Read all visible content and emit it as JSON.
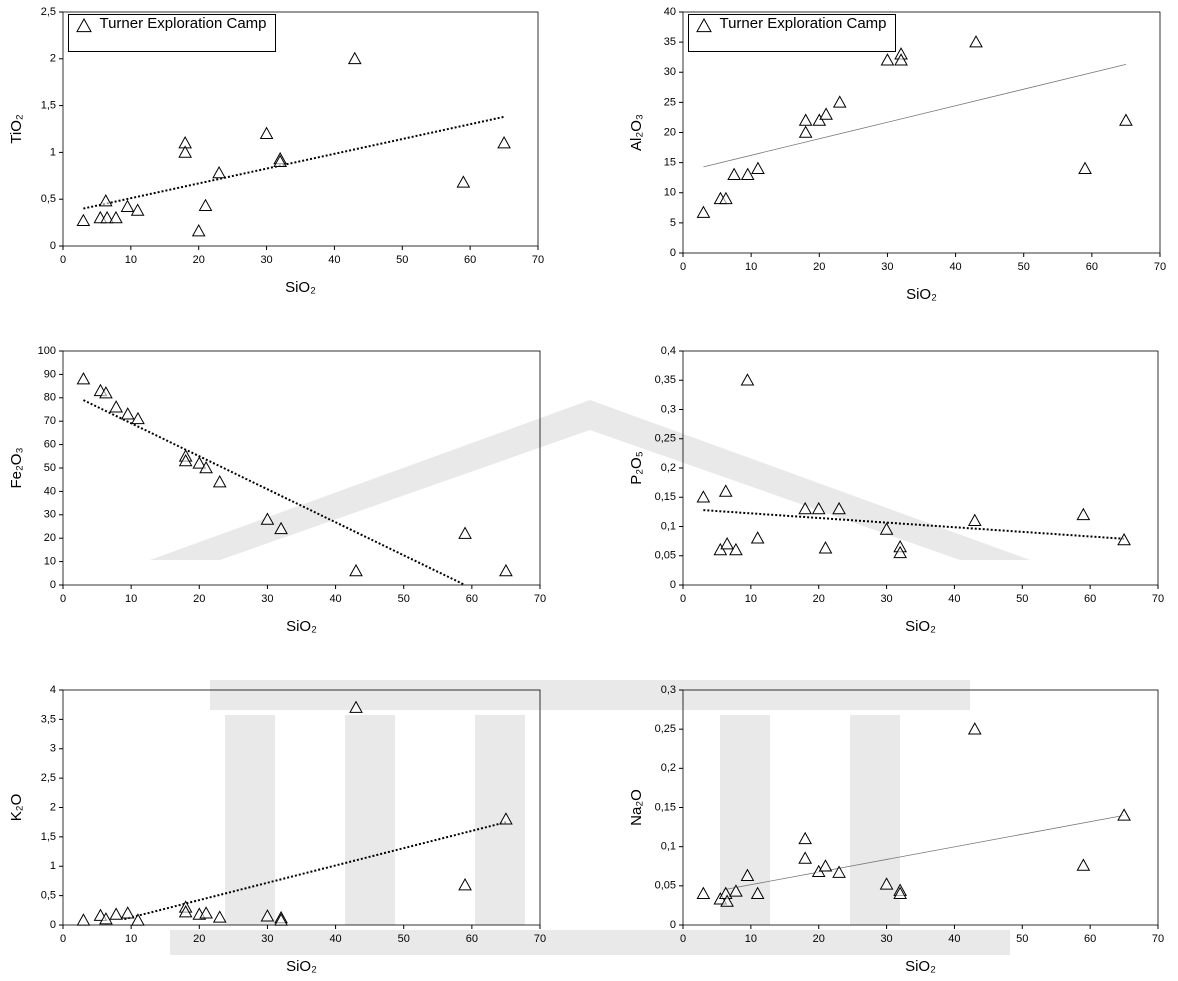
{
  "chart_data": [
    {
      "type": "scatter",
      "xlabel": "SiO₂",
      "ylabel": "TiO₂",
      "name": "Turner Exploration Camp",
      "legend": "upper left",
      "color": "#000000",
      "x": [
        3,
        5.5,
        6.3,
        6.5,
        7.8,
        9.5,
        11,
        18,
        18,
        20,
        21,
        23,
        30,
        32,
        32,
        43,
        59,
        65
      ],
      "y": [
        0.27,
        0.3,
        0.48,
        0.3,
        0.3,
        0.42,
        0.38,
        1.1,
        1.0,
        0.16,
        0.43,
        0.78,
        1.2,
        0.93,
        0.9,
        2.0,
        0.68,
        1.1
      ],
      "trend": {
        "x": [
          3,
          65
        ],
        "y": [
          0.4,
          1.38
        ],
        "style": "dotted"
      },
      "xlim": [
        0,
        70
      ],
      "xticks": [
        0,
        10,
        20,
        30,
        40,
        50,
        60,
        70
      ],
      "ylim": [
        0,
        2.5
      ],
      "yticks": [
        0,
        {
          "value": 0.5,
          "label": "0,5"
        },
        1,
        {
          "value": 1.5,
          "label": "1,5"
        },
        2,
        {
          "value": 2.5,
          "label": "2,5"
        }
      ]
    },
    {
      "type": "scatter",
      "xlabel": "SiO₂",
      "ylabel": "Al₂O₃",
      "name": "Turner Exploration Camp",
      "legend": "upper left",
      "color": "#000000",
      "x": [
        3,
        5.5,
        6.3,
        7.5,
        9.5,
        11,
        18,
        18,
        20,
        21,
        23,
        30,
        32,
        32,
        43,
        59,
        65
      ],
      "y": [
        6.7,
        9,
        9,
        13,
        13,
        14,
        22,
        20,
        22,
        23,
        25,
        32,
        33,
        32,
        35,
        14,
        22
      ],
      "trend": {
        "x": [
          3,
          65
        ],
        "y": [
          14.3,
          31.3
        ],
        "style": "thin"
      },
      "xlim": [
        0,
        70
      ],
      "xticks": [
        0,
        10,
        20,
        30,
        40,
        50,
        60,
        70
      ],
      "ylim": [
        0,
        40
      ],
      "yticks": [
        0,
        5,
        10,
        15,
        20,
        25,
        30,
        35,
        40
      ]
    },
    {
      "type": "scatter",
      "xlabel": "SiO₂",
      "ylabel": "Fe₂O₃",
      "color": "#000000",
      "x": [
        3,
        5.5,
        6.3,
        7.8,
        9.5,
        11,
        18,
        18,
        20,
        21,
        23,
        30,
        32,
        43,
        59,
        65
      ],
      "y": [
        88,
        83,
        82,
        76,
        73,
        71,
        55,
        53,
        52,
        50,
        44,
        28,
        24,
        6,
        22,
        6
      ],
      "trend": {
        "x": [
          3,
          59
        ],
        "y": [
          79,
          0
        ],
        "style": "dotted"
      },
      "xlim": [
        0,
        70
      ],
      "xticks": [
        0,
        10,
        20,
        30,
        40,
        50,
        60,
        70
      ],
      "ylim": [
        0,
        100
      ],
      "yticks": [
        0,
        10,
        20,
        30,
        40,
        50,
        60,
        70,
        80,
        90,
        100
      ]
    },
    {
      "type": "scatter",
      "xlabel": "SiO₂",
      "ylabel": "P₂O₅",
      "color": "#000000",
      "x": [
        3,
        5.5,
        6.3,
        6.5,
        7.8,
        9.5,
        11,
        18,
        20,
        21,
        23,
        30,
        32,
        32,
        43,
        59,
        65
      ],
      "y": [
        0.15,
        0.06,
        0.16,
        0.07,
        0.06,
        0.35,
        0.08,
        0.13,
        0.13,
        0.063,
        0.13,
        0.095,
        0.065,
        0.055,
        0.11,
        0.12,
        0.077
      ],
      "trend": {
        "x": [
          3,
          65
        ],
        "y": [
          0.128,
          0.079
        ],
        "style": "dotted"
      },
      "xlim": [
        0,
        70
      ],
      "xticks": [
        0,
        10,
        20,
        30,
        40,
        50,
        60,
        70
      ],
      "ylim": [
        0,
        0.4
      ],
      "yticks": [
        0,
        {
          "value": 0.05,
          "label": "0,05"
        },
        {
          "value": 0.1,
          "label": "0,1"
        },
        {
          "value": 0.15,
          "label": "0,15"
        },
        {
          "value": 0.2,
          "label": "0,2"
        },
        {
          "value": 0.25,
          "label": "0,25"
        },
        {
          "value": 0.3,
          "label": "0,3"
        },
        {
          "value": 0.35,
          "label": "0,35"
        },
        {
          "value": 0.4,
          "label": "0,4"
        }
      ]
    },
    {
      "type": "scatter",
      "xlabel": "SiO₂",
      "ylabel": "K₂O",
      "color": "#000000",
      "x": [
        3,
        5.5,
        6.3,
        7.8,
        9.5,
        11,
        18,
        18,
        20,
        21,
        23,
        30,
        32,
        32,
        43,
        59,
        65
      ],
      "y": [
        0.08,
        0.16,
        0.1,
        0.18,
        0.2,
        0.08,
        0.3,
        0.22,
        0.18,
        0.2,
        0.13,
        0.15,
        0.12,
        0.08,
        3.7,
        0.68,
        1.8
      ],
      "trend": {
        "x": [
          9,
          65
        ],
        "y": [
          0.1,
          1.75
        ],
        "style": "dotted"
      },
      "xlim": [
        0,
        70
      ],
      "xticks": [
        0,
        10,
        20,
        30,
        40,
        50,
        60,
        70
      ],
      "ylim": [
        0,
        4
      ],
      "yticks": [
        0,
        {
          "value": 0.5,
          "label": "0,5"
        },
        1,
        {
          "value": 1.5,
          "label": "1,5"
        },
        2,
        {
          "value": 2.5,
          "label": "2,5"
        },
        3,
        {
          "value": 3.5,
          "label": "3,5"
        },
        4
      ]
    },
    {
      "type": "scatter",
      "xlabel": "SiO₂",
      "ylabel": "Na₂O",
      "color": "#000000",
      "x": [
        3,
        5.5,
        6.3,
        6.5,
        7.8,
        9.5,
        11,
        18,
        18,
        20,
        21,
        23,
        30,
        32,
        32,
        43,
        59,
        65
      ],
      "y": [
        0.04,
        0.033,
        0.04,
        0.03,
        0.043,
        0.063,
        0.04,
        0.11,
        0.085,
        0.068,
        0.075,
        0.067,
        0.052,
        0.044,
        0.04,
        0.25,
        0.076,
        0.14
      ],
      "trend": {
        "x": [
          6,
          65
        ],
        "y": [
          0.045,
          0.14
        ],
        "style": "thin"
      },
      "xlim": [
        0,
        70
      ],
      "xticks": [
        0,
        10,
        20,
        30,
        40,
        50,
        60,
        70
      ],
      "ylim": [
        0,
        0.3
      ],
      "yticks": [
        0,
        {
          "value": 0.05,
          "label": "0,05"
        },
        {
          "value": 0.1,
          "label": "0,1"
        },
        {
          "value": 0.15,
          "label": "0,15"
        },
        {
          "value": 0.2,
          "label": "0,2"
        },
        {
          "value": 0.25,
          "label": "0,25"
        },
        {
          "value": 0.3,
          "label": "0,3"
        }
      ]
    }
  ]
}
